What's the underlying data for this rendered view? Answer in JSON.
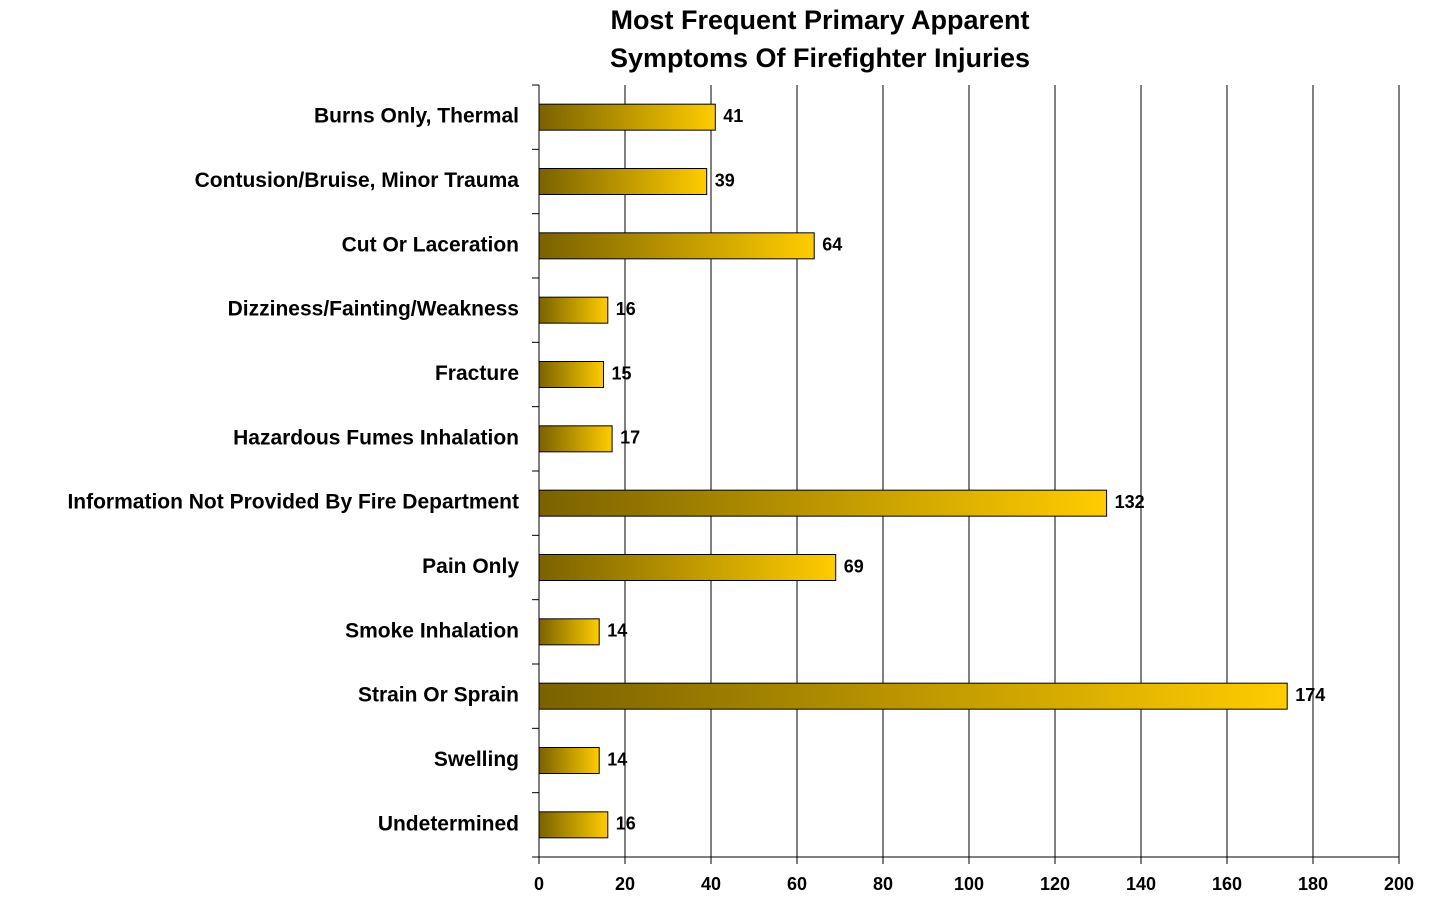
{
  "chart_data": {
    "type": "barh",
    "title": [
      "Most Frequent Primary Apparent",
      "Symptoms Of Firefighter Injuries"
    ],
    "categories": [
      "Burns Only, Thermal",
      "Contusion/Bruise, Minor Trauma",
      "Cut Or Laceration",
      "Dizziness/Fainting/Weakness",
      "Fracture",
      "Hazardous Fumes Inhalation",
      "Information Not Provided By Fire Department",
      "Pain Only",
      "Smoke Inhalation",
      "Strain Or Sprain",
      "Swelling",
      "Undetermined"
    ],
    "values": [
      41,
      39,
      64,
      16,
      15,
      17,
      132,
      69,
      14,
      174,
      14,
      16
    ],
    "color": [
      "#7a6200",
      "#ffcc00"
    ],
    "xlim": [
      0,
      200
    ],
    "xticks": [
      0,
      20,
      40,
      60,
      80,
      100,
      120,
      140,
      160,
      180,
      200
    ],
    "grid": true
  }
}
